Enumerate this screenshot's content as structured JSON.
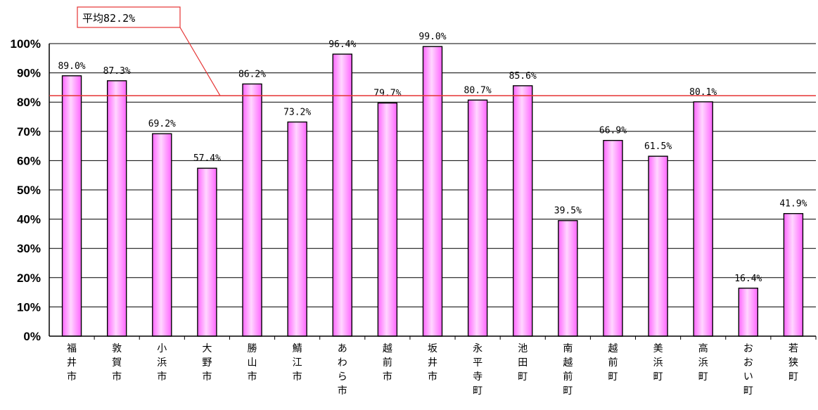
{
  "chart_data": {
    "type": "bar",
    "categories": [
      "福井市",
      "敦賀市",
      "小浜市",
      "大野市",
      "勝山市",
      "鯖江市",
      "あわら市",
      "越前市",
      "坂井市",
      "永平寺町",
      "池田町",
      "南越前町",
      "越前町",
      "美浜町",
      "高浜町",
      "おおい町",
      "若狭町"
    ],
    "values": [
      89.0,
      87.3,
      69.2,
      57.4,
      86.2,
      73.2,
      96.4,
      79.7,
      99.0,
      80.7,
      85.6,
      39.5,
      66.9,
      61.5,
      80.1,
      16.4,
      41.9
    ],
    "data_labels": [
      "89.0%",
      "87.3%",
      "69.2%",
      "57.4%",
      "86.2%",
      "73.2%",
      "96.4%",
      "79.7%",
      "99.0%",
      "80.7%",
      "85.6%",
      "39.5%",
      "66.9%",
      "61.5%",
      "80.1%",
      "16.4%",
      "41.9%"
    ],
    "ylim": [
      0,
      100
    ],
    "yticks": [
      "0%",
      "10%",
      "20%",
      "30%",
      "40%",
      "50%",
      "60%",
      "70%",
      "80%",
      "90%",
      "100%"
    ],
    "grid": true,
    "average": {
      "value": 82.2,
      "label": "平均82.2%"
    },
    "colors": {
      "bar": "#ff66ff",
      "bar_highlight": "#ffd6ff",
      "bar_stroke": "#000000",
      "average_line": "#e53333",
      "gridline": "#000000"
    }
  }
}
